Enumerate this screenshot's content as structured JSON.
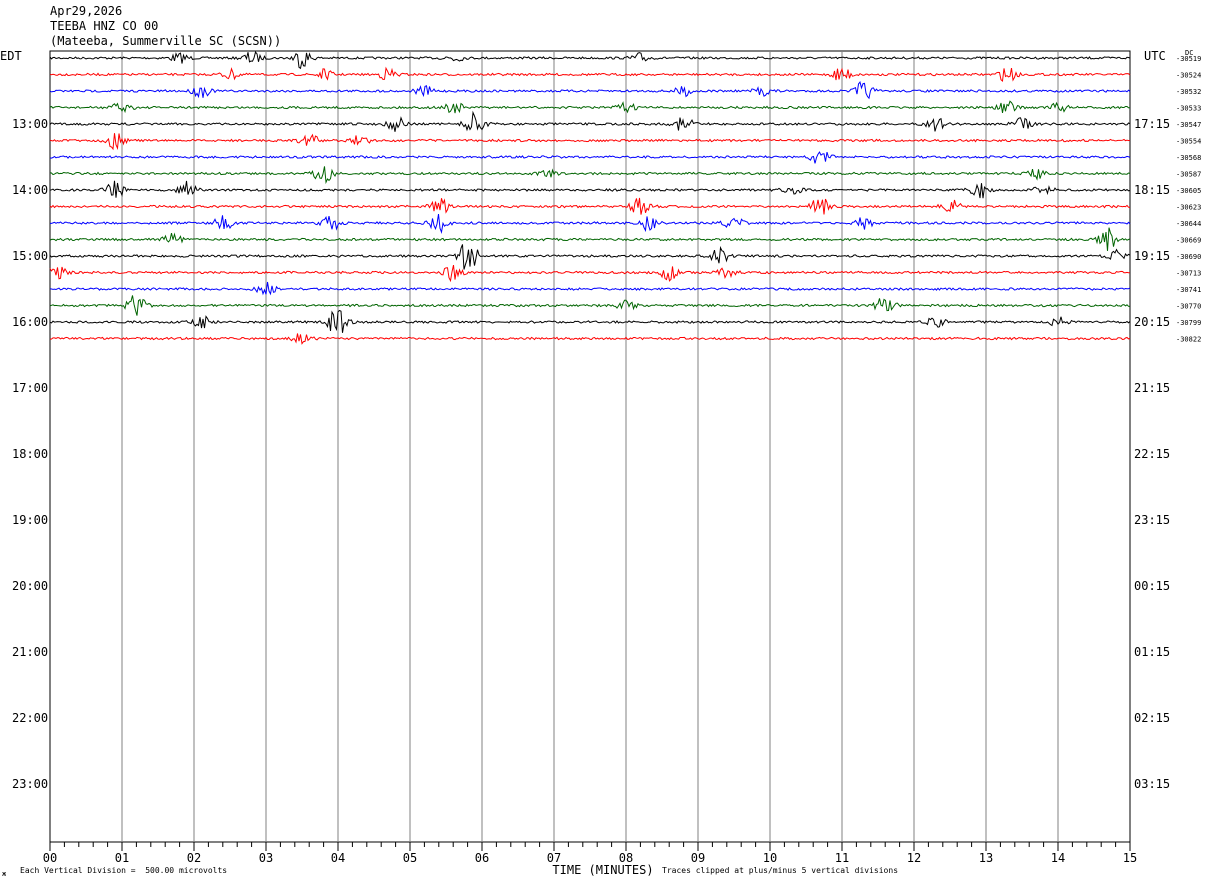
{
  "header": {
    "date": "Apr29,2026",
    "station": "TEEBA HNZ CO 00",
    "location": "(Mateeba, Summerville SC (SCSN))"
  },
  "timezones": {
    "left": "EDT",
    "right": "UTC",
    "dc_label": "DC"
  },
  "footer": {
    "scale_note": "Each Vertical Division =  500.00 microvolts",
    "clip_note": "Traces clipped at plus/minus 5 vertical divisions",
    "corner_mark": "ж"
  },
  "chart_data": {
    "type": "line",
    "xlabel": "TIME (MINUTES)",
    "xlim": [
      0,
      15
    ],
    "x_ticks": [
      "00",
      "01",
      "02",
      "03",
      "04",
      "05",
      "06",
      "07",
      "08",
      "09",
      "10",
      "11",
      "12",
      "13",
      "14",
      "15"
    ],
    "row_minutes": 15,
    "total_rows": 48,
    "left_hour_labels": [
      "13:00",
      "14:00",
      "15:00",
      "16:00",
      "17:00",
      "18:00",
      "19:00",
      "20:00",
      "21:00",
      "22:00",
      "23:00"
    ],
    "right_hour_labels": [
      "17:15",
      "18:15",
      "19:15",
      "20:15",
      "21:15",
      "22:15",
      "23:15",
      "00:15",
      "01:15",
      "02:15",
      "03:15"
    ],
    "trace_colors": [
      "#000000",
      "#ff0000",
      "#0000ff",
      "#006400"
    ],
    "dc_offsets": [
      "-30519",
      "-30524",
      "-30532",
      "-30533",
      "-30547",
      "-30554",
      "-30568",
      "-30587",
      "-30605",
      "-30623",
      "-30644",
      "-30669",
      "-30690",
      "-30713",
      "-30741",
      "-30770",
      "-30799",
      "-30822"
    ],
    "events": [
      {
        "row": 0,
        "minute": 1.8,
        "amp": 0.3
      },
      {
        "row": 0,
        "minute": 2.8,
        "amp": 0.4
      },
      {
        "row": 0,
        "minute": 3.5,
        "amp": 0.6
      },
      {
        "row": 0,
        "minute": 5.6,
        "amp": 0.3
      },
      {
        "row": 0,
        "minute": 8.2,
        "amp": 0.3
      },
      {
        "row": 1,
        "minute": 2.5,
        "amp": 0.3
      },
      {
        "row": 1,
        "minute": 3.8,
        "amp": 0.3
      },
      {
        "row": 1,
        "minute": 4.7,
        "amp": 0.4
      },
      {
        "row": 1,
        "minute": 11.0,
        "amp": 0.5
      },
      {
        "row": 1,
        "minute": 13.3,
        "amp": 0.5
      },
      {
        "row": 2,
        "minute": 2.1,
        "amp": 0.4
      },
      {
        "row": 2,
        "minute": 5.2,
        "amp": 0.3
      },
      {
        "row": 2,
        "minute": 8.8,
        "amp": 0.3
      },
      {
        "row": 2,
        "minute": 9.9,
        "amp": 0.3
      },
      {
        "row": 2,
        "minute": 11.3,
        "amp": 0.6
      },
      {
        "row": 3,
        "minute": 1.0,
        "amp": 0.4
      },
      {
        "row": 3,
        "minute": 5.6,
        "amp": 0.4
      },
      {
        "row": 3,
        "minute": 8.0,
        "amp": 0.3
      },
      {
        "row": 3,
        "minute": 13.3,
        "amp": 0.4
      },
      {
        "row": 3,
        "minute": 14.0,
        "amp": 0.3
      },
      {
        "row": 4,
        "minute": 4.8,
        "amp": 0.5
      },
      {
        "row": 4,
        "minute": 5.9,
        "amp": 0.9
      },
      {
        "row": 4,
        "minute": 8.8,
        "amp": 0.5
      },
      {
        "row": 4,
        "minute": 12.3,
        "amp": 0.4
      },
      {
        "row": 4,
        "minute": 13.5,
        "amp": 0.4
      },
      {
        "row": 5,
        "minute": 0.9,
        "amp": 0.5
      },
      {
        "row": 5,
        "minute": 3.6,
        "amp": 0.4
      },
      {
        "row": 5,
        "minute": 4.3,
        "amp": 0.3
      },
      {
        "row": 6,
        "minute": 10.7,
        "amp": 0.5
      },
      {
        "row": 7,
        "minute": 3.8,
        "amp": 0.6
      },
      {
        "row": 7,
        "minute": 6.9,
        "amp": 0.3
      },
      {
        "row": 7,
        "minute": 13.7,
        "amp": 0.3
      },
      {
        "row": 8,
        "minute": 0.9,
        "amp": 0.6
      },
      {
        "row": 8,
        "minute": 1.9,
        "amp": 0.5
      },
      {
        "row": 8,
        "minute": 10.3,
        "amp": 0.3
      },
      {
        "row": 8,
        "minute": 12.9,
        "amp": 0.6
      },
      {
        "row": 8,
        "minute": 13.8,
        "amp": 0.3
      },
      {
        "row": 9,
        "minute": 5.4,
        "amp": 0.6
      },
      {
        "row": 9,
        "minute": 8.2,
        "amp": 0.6
      },
      {
        "row": 9,
        "minute": 10.7,
        "amp": 0.6
      },
      {
        "row": 9,
        "minute": 12.5,
        "amp": 0.5
      },
      {
        "row": 10,
        "minute": 2.4,
        "amp": 0.5
      },
      {
        "row": 10,
        "minute": 3.9,
        "amp": 0.5
      },
      {
        "row": 10,
        "minute": 5.4,
        "amp": 0.6
      },
      {
        "row": 10,
        "minute": 8.3,
        "amp": 0.5
      },
      {
        "row": 10,
        "minute": 9.5,
        "amp": 0.4
      },
      {
        "row": 10,
        "minute": 11.3,
        "amp": 0.4
      },
      {
        "row": 11,
        "minute": 1.7,
        "amp": 0.4
      },
      {
        "row": 11,
        "minute": 14.7,
        "amp": 0.7
      },
      {
        "row": 12,
        "minute": 5.8,
        "amp": 1.2
      },
      {
        "row": 12,
        "minute": 9.3,
        "amp": 0.5
      },
      {
        "row": 12,
        "minute": 14.8,
        "amp": 0.4
      },
      {
        "row": 13,
        "minute": 0.1,
        "amp": 0.4
      },
      {
        "row": 13,
        "minute": 5.6,
        "amp": 0.5
      },
      {
        "row": 13,
        "minute": 8.6,
        "amp": 0.5
      },
      {
        "row": 13,
        "minute": 9.4,
        "amp": 0.3
      },
      {
        "row": 14,
        "minute": 3.0,
        "amp": 0.4
      },
      {
        "row": 15,
        "minute": 1.2,
        "amp": 0.7
      },
      {
        "row": 15,
        "minute": 8.0,
        "amp": 0.3
      },
      {
        "row": 15,
        "minute": 11.6,
        "amp": 0.6
      },
      {
        "row": 16,
        "minute": 2.1,
        "amp": 0.4
      },
      {
        "row": 16,
        "minute": 4.0,
        "amp": 1.1
      },
      {
        "row": 16,
        "minute": 12.3,
        "amp": 0.3
      },
      {
        "row": 16,
        "minute": 14.0,
        "amp": 0.3
      },
      {
        "row": 17,
        "minute": 3.5,
        "amp": 0.4
      }
    ]
  }
}
